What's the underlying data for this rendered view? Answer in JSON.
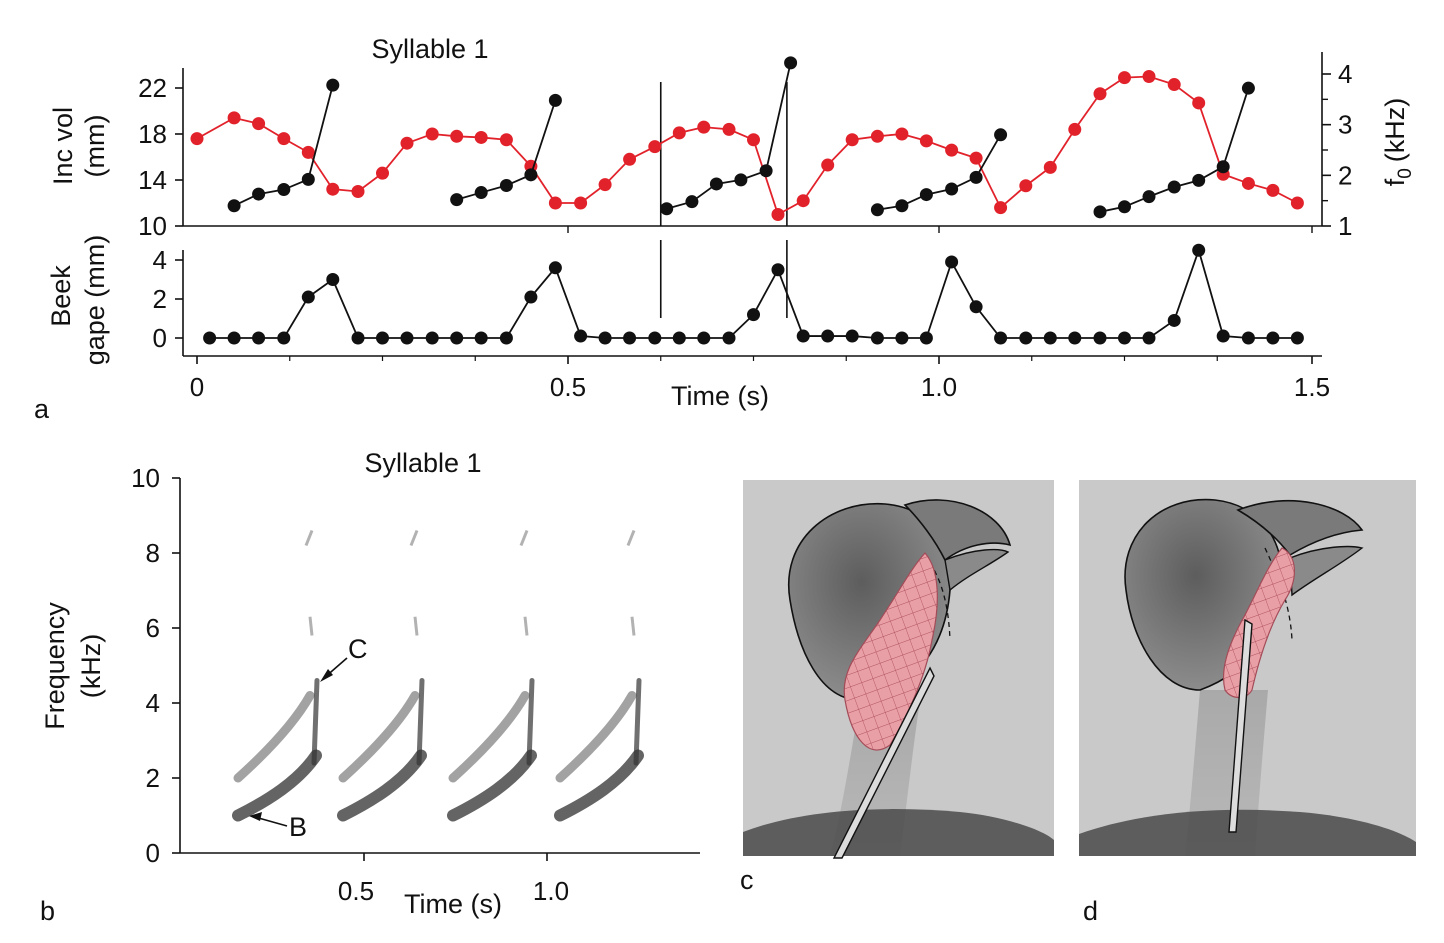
{
  "panels": {
    "a": {
      "letter": "a",
      "title": "Syllable 1",
      "xlabel": "Time (s)"
    },
    "b": {
      "letter": "b",
      "title": "Syllable 1",
      "xlabel": "Time (s)",
      "ylabel_line1": "Frequency",
      "ylabel_line2": "(kHz)",
      "annotation_c": "C",
      "annotation_b": "B"
    },
    "c": {
      "letter": "c"
    },
    "d": {
      "letter": "d"
    }
  },
  "colors": {
    "red_series": "#e2222b",
    "black_series": "#111111",
    "photo_bg": "#c9c9c9",
    "tongue": "#e8a0a6"
  },
  "chart_data": [
    {
      "type": "line",
      "panel": "a-top",
      "title": "Syllable 1",
      "ylabel_line1": "Inc vol",
      "ylabel_line2": "(mm)",
      "ylabel_right": "f",
      "ylabel_right_sub": "0",
      "ylabel_right_unit": "(kHz)",
      "xlim": [
        0,
        1.5
      ],
      "ylim": [
        10,
        23.5
      ],
      "yticks": [
        10,
        14,
        18,
        22
      ],
      "ylim_right": [
        1,
        4.3
      ],
      "yticks_right": [
        1,
        2,
        3,
        4
      ],
      "vlines": [
        0.625,
        0.795
      ],
      "red": [
        [
          0.0,
          17.6
        ],
        [
          0.05,
          19.4
        ],
        [
          0.083,
          18.9
        ],
        [
          0.117,
          17.6
        ],
        [
          0.15,
          16.4
        ],
        [
          0.183,
          13.2
        ],
        [
          0.217,
          13.0
        ],
        [
          0.25,
          14.6
        ],
        [
          0.283,
          17.2
        ],
        [
          0.317,
          18.0
        ],
        [
          0.35,
          17.8
        ],
        [
          0.383,
          17.7
        ],
        [
          0.417,
          17.5
        ],
        [
          0.45,
          15.2
        ],
        [
          0.483,
          12.0
        ],
        [
          0.517,
          12.0
        ],
        [
          0.55,
          13.6
        ],
        [
          0.583,
          15.8
        ],
        [
          0.617,
          16.9
        ],
        [
          0.65,
          18.1
        ],
        [
          0.683,
          18.6
        ],
        [
          0.717,
          18.4
        ],
        [
          0.75,
          17.5
        ],
        [
          0.783,
          11.0
        ],
        [
          0.817,
          12.2
        ],
        [
          0.85,
          15.3
        ],
        [
          0.883,
          17.5
        ],
        [
          0.917,
          17.8
        ],
        [
          0.95,
          18.0
        ],
        [
          0.983,
          17.4
        ],
        [
          1.017,
          16.6
        ],
        [
          1.05,
          15.9
        ],
        [
          1.083,
          11.6
        ],
        [
          1.117,
          13.5
        ],
        [
          1.15,
          15.1
        ],
        [
          1.183,
          18.4
        ],
        [
          1.217,
          21.5
        ],
        [
          1.25,
          22.9
        ],
        [
          1.283,
          23.0
        ],
        [
          1.317,
          22.3
        ],
        [
          1.35,
          20.7
        ],
        [
          1.383,
          14.5
        ],
        [
          1.417,
          13.7
        ],
        [
          1.45,
          13.1
        ],
        [
          1.483,
          12.0
        ]
      ],
      "black_runs": [
        [
          [
            0.05,
            1.4
          ],
          [
            0.083,
            1.63
          ],
          [
            0.117,
            1.72
          ],
          [
            0.15,
            1.92
          ],
          [
            0.183,
            3.78
          ]
        ],
        [
          [
            0.35,
            1.52
          ],
          [
            0.383,
            1.66
          ],
          [
            0.417,
            1.8
          ],
          [
            0.45,
            2.01
          ],
          [
            0.483,
            3.48
          ]
        ],
        [
          [
            0.633,
            1.34
          ],
          [
            0.667,
            1.48
          ],
          [
            0.7,
            1.83
          ],
          [
            0.733,
            1.91
          ],
          [
            0.767,
            2.09
          ],
          [
            0.8,
            4.22
          ]
        ],
        [
          [
            0.917,
            1.32
          ],
          [
            0.95,
            1.4
          ],
          [
            0.983,
            1.62
          ],
          [
            1.017,
            1.73
          ],
          [
            1.05,
            1.96
          ],
          [
            1.083,
            2.8
          ]
        ],
        [
          [
            1.217,
            1.28
          ],
          [
            1.25,
            1.38
          ],
          [
            1.283,
            1.58
          ],
          [
            1.317,
            1.77
          ],
          [
            1.35,
            1.9
          ],
          [
            1.383,
            2.17
          ],
          [
            1.417,
            3.72
          ]
        ]
      ]
    },
    {
      "type": "line",
      "panel": "a-bottom",
      "ylabel_line1": "Beek",
      "ylabel_line2": "gape (mm)",
      "xlabel": "Time (s)",
      "xlim": [
        0,
        1.5
      ],
      "xticks": [
        0,
        0.5,
        1.0,
        1.5
      ],
      "xtick_labels": [
        "0",
        "0.5",
        "1.0",
        "1.5"
      ],
      "ylim": [
        -0.4,
        4.6
      ],
      "yticks": [
        0,
        2,
        4
      ],
      "vlines": [
        0.625,
        0.795
      ],
      "points": [
        [
          0.017,
          0.0
        ],
        [
          0.05,
          0.0
        ],
        [
          0.083,
          0.0
        ],
        [
          0.117,
          0.0
        ],
        [
          0.15,
          2.1
        ],
        [
          0.183,
          3.0
        ],
        [
          0.217,
          0.0
        ],
        [
          0.25,
          0.0
        ],
        [
          0.283,
          0.0
        ],
        [
          0.317,
          0.0
        ],
        [
          0.35,
          0.0
        ],
        [
          0.383,
          0.0
        ],
        [
          0.417,
          0.0
        ],
        [
          0.45,
          2.1
        ],
        [
          0.483,
          3.6
        ],
        [
          0.517,
          0.1
        ],
        [
          0.55,
          0.0
        ],
        [
          0.583,
          0.0
        ],
        [
          0.617,
          0.0
        ],
        [
          0.65,
          0.0
        ],
        [
          0.683,
          0.0
        ],
        [
          0.717,
          0.0
        ],
        [
          0.75,
          1.2
        ],
        [
          0.783,
          3.5
        ],
        [
          0.817,
          0.1
        ],
        [
          0.85,
          0.1
        ],
        [
          0.883,
          0.1
        ],
        [
          0.917,
          0.0
        ],
        [
          0.95,
          0.0
        ],
        [
          0.983,
          0.0
        ],
        [
          1.017,
          3.9
        ],
        [
          1.05,
          1.6
        ],
        [
          1.083,
          0.0
        ],
        [
          1.117,
          0.0
        ],
        [
          1.15,
          0.0
        ],
        [
          1.183,
          0.0
        ],
        [
          1.217,
          0.0
        ],
        [
          1.25,
          0.0
        ],
        [
          1.283,
          0.0
        ],
        [
          1.317,
          0.9
        ],
        [
          1.35,
          4.5
        ],
        [
          1.383,
          0.1
        ],
        [
          1.417,
          0.0
        ],
        [
          1.45,
          0.0
        ],
        [
          1.483,
          0.0
        ]
      ]
    },
    {
      "type": "heatmap",
      "panel": "b",
      "title": "Syllable 1",
      "xlabel": "Time (s)",
      "ylabel": "Frequency (kHz)",
      "xlim": [
        0,
        1.5
      ],
      "xticks": [
        0.5,
        1.0
      ],
      "xtick_labels": [
        "0.5",
        "1.0"
      ],
      "ylim": [
        0,
        10
      ],
      "yticks": [
        0,
        2,
        4,
        6,
        8,
        10
      ],
      "syllable_starts": [
        0.15,
        0.44,
        0.735,
        1.02
      ],
      "syllable_duration": 0.22,
      "lower_band_khz": [
        1.0,
        2.7
      ],
      "upper_band_khz": [
        2.0,
        4.2
      ],
      "peak_khz": 4.6,
      "annotations": [
        {
          "text": "C",
          "khz": 4.6
        },
        {
          "text": "B",
          "khz": 0.9
        }
      ]
    }
  ]
}
